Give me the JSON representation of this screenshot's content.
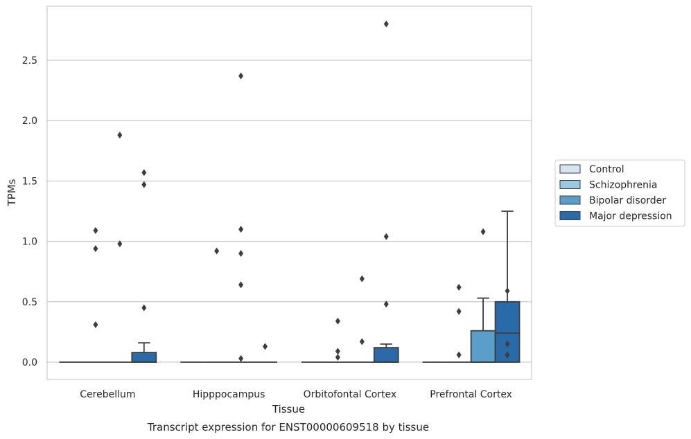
{
  "chart_data": {
    "type": "box",
    "title": "Transcript expression for ENST00000609518 by tissue",
    "xlabel": "Tissue",
    "ylabel": "TPMs",
    "ylim": [
      -0.14,
      2.95
    ],
    "yticks": [
      0.0,
      0.5,
      1.0,
      1.5,
      2.0,
      2.5
    ],
    "ytick_labels": [
      "0.0",
      "0.5",
      "1.0",
      "1.5",
      "2.0",
      "2.5"
    ],
    "grid": "horizontal",
    "legend_position": "right",
    "categories": [
      "Cerebellum",
      "Hipppocampus",
      "Orbitofontal Cortex",
      "Prefrontal Cortex"
    ],
    "series": [
      {
        "name": "Control",
        "color": "#d3e4f3",
        "boxes": [
          {
            "q1": 0,
            "median": 0,
            "q3": 0,
            "whislo": 0,
            "whishi": 0,
            "fliers": []
          },
          {
            "q1": 0,
            "median": 0,
            "q3": 0,
            "whislo": 0,
            "whishi": 0,
            "fliers": []
          },
          {
            "q1": 0,
            "median": 0,
            "q3": 0,
            "whislo": 0,
            "whishi": 0,
            "fliers": []
          },
          {
            "q1": 0,
            "median": 0,
            "q3": 0,
            "whislo": 0,
            "whishi": 0,
            "fliers": []
          }
        ]
      },
      {
        "name": "Schizophrenia",
        "color": "#9ac8e0",
        "boxes": [
          {
            "q1": 0,
            "median": 0,
            "q3": 0,
            "whislo": 0,
            "whishi": 0,
            "fliers": [
              1.09,
              0.94,
              0.31
            ]
          },
          {
            "q1": 0,
            "median": 0,
            "q3": 0,
            "whislo": 0,
            "whishi": 0,
            "fliers": [
              0.92
            ]
          },
          {
            "q1": 0,
            "median": 0,
            "q3": 0,
            "whislo": 0,
            "whishi": 0,
            "fliers": [
              0.34,
              0.09,
              0.04
            ]
          },
          {
            "q1": 0,
            "median": 0,
            "q3": 0,
            "whislo": 0,
            "whishi": 0,
            "fliers": [
              0.62,
              0.42,
              0.06
            ]
          }
        ]
      },
      {
        "name": "Bipolar disorder",
        "color": "#5a9ec9",
        "boxes": [
          {
            "q1": 0,
            "median": 0,
            "q3": 0,
            "whislo": 0,
            "whishi": 0,
            "fliers": [
              0.98,
              1.88
            ]
          },
          {
            "q1": 0,
            "median": 0,
            "q3": 0,
            "whislo": 0,
            "whishi": 0,
            "fliers": [
              2.37,
              0.9,
              0.64,
              1.1,
              0.03
            ]
          },
          {
            "q1": 0,
            "median": 0,
            "q3": 0,
            "whislo": 0,
            "whishi": 0,
            "fliers": [
              0.69,
              0.17
            ]
          },
          {
            "q1": 0,
            "median": 0,
            "q3": 0.26,
            "whislo": 0,
            "whishi": 0.53,
            "fliers": [
              1.08
            ]
          }
        ]
      },
      {
        "name": "Major depression",
        "color": "#2a6aa8",
        "boxes": [
          {
            "q1": 0,
            "median": 0,
            "q3": 0.08,
            "whislo": 0,
            "whishi": 0.16,
            "fliers": [
              1.57,
              1.47,
              0.45
            ]
          },
          {
            "q1": 0,
            "median": 0,
            "q3": 0,
            "whislo": 0,
            "whishi": 0,
            "fliers": [
              0.13
            ]
          },
          {
            "q1": 0,
            "median": 0,
            "q3": 0.12,
            "whislo": 0,
            "whishi": 0.15,
            "fliers": [
              2.8,
              1.04,
              0.48
            ]
          },
          {
            "q1": 0,
            "median": 0.24,
            "q3": 0.5,
            "whislo": 0,
            "whishi": 1.25,
            "fliers": [
              0.59,
              0.15,
              0.06
            ]
          }
        ]
      }
    ]
  }
}
